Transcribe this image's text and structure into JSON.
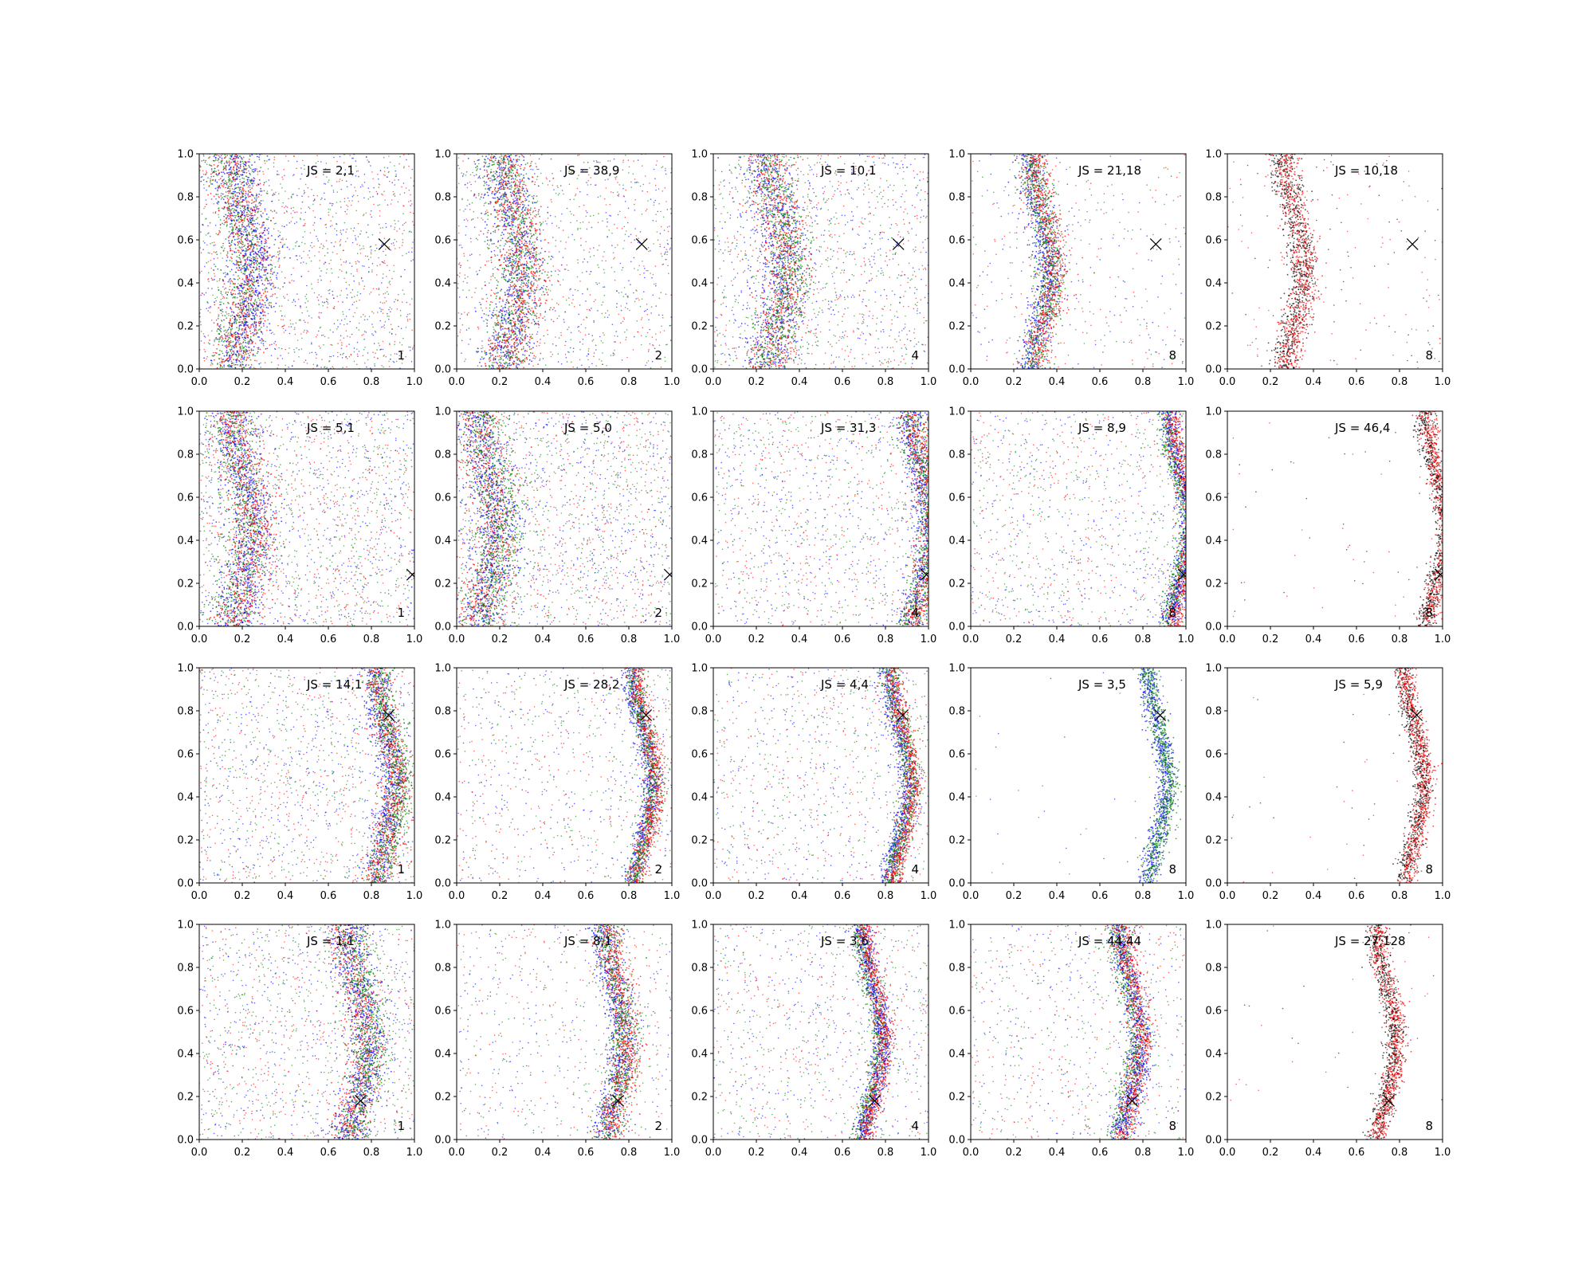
{
  "chart_data": {
    "type": "scatter",
    "layout": "4 rows x 5 columns grid of scatter subplots",
    "xlim": [
      0,
      1
    ],
    "ylim": [
      0,
      1
    ],
    "xticks": [
      "0.0",
      "0.2",
      "0.4",
      "0.6",
      "0.8",
      "1.0"
    ],
    "yticks": [
      "0.0",
      "0.2",
      "0.4",
      "0.6",
      "0.8",
      "1.0"
    ],
    "grid": false,
    "colors": {
      "red": "#ff0000",
      "green": "#008000",
      "blue": "#0000ff",
      "black": "#000000"
    },
    "panels": [
      {
        "row": 1,
        "col": 1,
        "label": "JS = 2,1",
        "corner": "1",
        "marker": [
          0.86,
          0.58
        ],
        "curve_center": 0.2,
        "series": [
          "green",
          "red",
          "blue"
        ],
        "spread": 0.5,
        "noise": 0.55,
        "density": "high"
      },
      {
        "row": 1,
        "col": 2,
        "label": "JS = 38,9",
        "corner": "2",
        "marker": [
          0.86,
          0.58
        ],
        "curve_center": 0.26,
        "series": [
          "blue",
          "green",
          "red"
        ],
        "spread": 0.5,
        "noise": 0.4,
        "density": "high"
      },
      {
        "row": 1,
        "col": 3,
        "label": "JS = 10,1",
        "corner": "4",
        "marker": [
          0.86,
          0.58
        ],
        "curve_center": 0.3,
        "series": [
          "blue",
          "red",
          "green"
        ],
        "spread": 0.5,
        "noise": 0.5,
        "density": "high"
      },
      {
        "row": 1,
        "col": 4,
        "label": "JS = 21,18",
        "corner": "8",
        "marker": [
          0.86,
          0.58
        ],
        "curve_center": 0.33,
        "series": [
          "blue",
          "green",
          "red"
        ],
        "spread": 0.3,
        "noise": 0.15,
        "density": "high"
      },
      {
        "row": 1,
        "col": 5,
        "label": "JS = 10,18",
        "corner": "8",
        "marker": [
          0.86,
          0.58
        ],
        "curve_center": 0.31,
        "series": [
          "black",
          "red"
        ],
        "spread": 0.3,
        "noise": 0.1,
        "density": "high"
      },
      {
        "row": 2,
        "col": 1,
        "label": "JS = 5,1",
        "corner": "1",
        "marker": [
          0.99,
          0.24
        ],
        "curve_center": 0.2,
        "series": [
          "green",
          "blue",
          "red"
        ],
        "spread": 0.5,
        "noise": 0.65,
        "density": "high"
      },
      {
        "row": 2,
        "col": 2,
        "label": "JS = 5,0",
        "corner": "2",
        "marker": [
          0.99,
          0.24
        ],
        "curve_center": 0.15,
        "series": [
          "red",
          "blue",
          "green"
        ],
        "spread": 0.5,
        "noise": 0.65,
        "density": "high"
      },
      {
        "row": 2,
        "col": 3,
        "label": "JS = 31,3",
        "corner": "4",
        "marker": [
          0.99,
          0.24
        ],
        "curve_center": 0.97,
        "series": [
          "blue",
          "green",
          "red"
        ],
        "spread": 0.3,
        "noise": 0.45,
        "density": "high"
      },
      {
        "row": 2,
        "col": 4,
        "label": "JS = 8,9",
        "corner": "8",
        "marker": [
          0.99,
          0.24
        ],
        "curve_center": 0.97,
        "series": [
          "green",
          "blue",
          "red"
        ],
        "spread": 0.2,
        "noise": 0.4,
        "density": "high"
      },
      {
        "row": 2,
        "col": 5,
        "label": "JS = 46,4",
        "corner": "8",
        "marker": [
          0.99,
          0.24
        ],
        "curve_center": 0.97,
        "series": [
          "black",
          "red"
        ],
        "spread": 0.2,
        "noise": 0.03,
        "density": "high"
      },
      {
        "row": 3,
        "col": 1,
        "label": "JS = 14,1",
        "corner": "1",
        "marker": [
          0.88,
          0.78
        ],
        "curve_center": 0.87,
        "series": [
          "blue",
          "red",
          "green"
        ],
        "spread": 0.3,
        "noise": 0.5,
        "density": "high"
      },
      {
        "row": 3,
        "col": 2,
        "label": "JS = 28,2",
        "corner": "2",
        "marker": [
          0.88,
          0.78
        ],
        "curve_center": 0.87,
        "series": [
          "blue",
          "green",
          "red"
        ],
        "spread": 0.2,
        "noise": 0.3,
        "density": "high"
      },
      {
        "row": 3,
        "col": 3,
        "label": "JS = 4,4",
        "corner": "4",
        "marker": [
          0.88,
          0.78
        ],
        "curve_center": 0.87,
        "series": [
          "blue",
          "green",
          "red"
        ],
        "spread": 0.2,
        "noise": 0.35,
        "density": "high"
      },
      {
        "row": 3,
        "col": 4,
        "label": "JS = 3,5",
        "corner": "8",
        "marker": [
          0.88,
          0.78
        ],
        "curve_center": 0.87,
        "series": [
          "blue",
          "green"
        ],
        "spread": 0.2,
        "noise": 0.02,
        "density": "high"
      },
      {
        "row": 3,
        "col": 5,
        "label": "JS = 5,9",
        "corner": "8",
        "marker": [
          0.88,
          0.78
        ],
        "curve_center": 0.87,
        "series": [
          "black",
          "red"
        ],
        "spread": 0.2,
        "noise": 0.02,
        "density": "high"
      },
      {
        "row": 4,
        "col": 1,
        "label": "JS = 1,1",
        "corner": "1",
        "marker": [
          0.75,
          0.18
        ],
        "curve_center": 0.74,
        "series": [
          "red",
          "blue",
          "green"
        ],
        "spread": 0.4,
        "noise": 0.5,
        "density": "high"
      },
      {
        "row": 4,
        "col": 2,
        "label": "JS = 8,1",
        "corner": "2",
        "marker": [
          0.75,
          0.18
        ],
        "curve_center": 0.74,
        "series": [
          "blue",
          "green",
          "red"
        ],
        "spread": 0.3,
        "noise": 0.25,
        "density": "high"
      },
      {
        "row": 4,
        "col": 3,
        "label": "JS = 3,6",
        "corner": "4",
        "marker": [
          0.75,
          0.18
        ],
        "curve_center": 0.74,
        "series": [
          "green",
          "blue",
          "red"
        ],
        "spread": 0.2,
        "noise": 0.35,
        "density": "high"
      },
      {
        "row": 4,
        "col": 4,
        "label": "JS = 44,44",
        "corner": "8",
        "marker": [
          0.75,
          0.18
        ],
        "curve_center": 0.74,
        "series": [
          "green",
          "blue",
          "red"
        ],
        "spread": 0.25,
        "noise": 0.3,
        "density": "high"
      },
      {
        "row": 4,
        "col": 5,
        "label": "JS = 27,128",
        "corner": "8",
        "marker": [
          0.75,
          0.18
        ],
        "curve_center": 0.74,
        "series": [
          "black",
          "red"
        ],
        "spread": 0.2,
        "noise": 0.02,
        "density": "high"
      }
    ]
  }
}
